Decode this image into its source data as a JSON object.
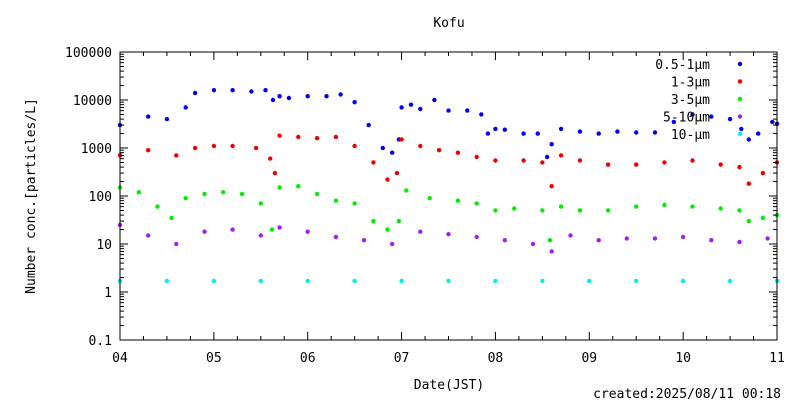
{
  "chart_data": {
    "type": "scatter",
    "title": "Kofu",
    "xlabel": "Date(JST)",
    "ylabel": "Number conc.[particles/L]",
    "footer": "created:2025/08/11 00:18",
    "y_scale": "log",
    "ylim": [
      0.1,
      100000
    ],
    "y_ticks": [
      "0.1",
      "1",
      "10",
      "100",
      "1000",
      "10000",
      "100000"
    ],
    "y_tick_values": [
      0.1,
      1,
      10,
      100,
      1000,
      10000,
      100000
    ],
    "xlim": [
      4,
      11
    ],
    "x_ticks": [
      "04",
      "05",
      "06",
      "07",
      "08",
      "09",
      "10",
      "11"
    ],
    "x_tick_values": [
      4,
      5,
      6,
      7,
      8,
      9,
      10,
      11
    ],
    "grid": false,
    "legend_position": "top-right",
    "series": [
      {
        "name": "0.5-1μm",
        "color": "#0000ee",
        "x": [
          4.0,
          4.3,
          4.5,
          4.7,
          4.8,
          5.0,
          5.2,
          5.4,
          5.55,
          5.63,
          5.7,
          5.8,
          6.0,
          6.2,
          6.35,
          6.5,
          6.65,
          6.8,
          6.9,
          6.97,
          7.0,
          7.1,
          7.2,
          7.35,
          7.5,
          7.7,
          7.85,
          7.92,
          8.0,
          8.1,
          8.3,
          8.45,
          8.55,
          8.6,
          8.7,
          8.9,
          9.1,
          9.3,
          9.5,
          9.7,
          9.9,
          10.1,
          10.3,
          10.5,
          10.62,
          10.7,
          10.8,
          10.95,
          11.0
        ],
        "y": [
          3000,
          4500,
          4000,
          7000,
          14000,
          16000,
          16000,
          15000,
          16000,
          10000,
          12000,
          11000,
          12000,
          12000,
          13000,
          9000,
          3000,
          1000,
          800,
          1500,
          7000,
          8000,
          6500,
          10000,
          6000,
          6000,
          5000,
          2000,
          2500,
          2400,
          2000,
          2000,
          650,
          1200,
          2500,
          2200,
          2000,
          2200,
          2100,
          2100,
          3500,
          5000,
          4500,
          4000,
          2500,
          1500,
          2000,
          3500,
          3200
        ]
      },
      {
        "name": "1-3μm",
        "color": "#ee0000",
        "x": [
          4.0,
          4.3,
          4.6,
          4.8,
          5.0,
          5.2,
          5.45,
          5.6,
          5.65,
          5.7,
          5.9,
          6.1,
          6.3,
          6.5,
          6.7,
          6.85,
          6.95,
          7.0,
          7.2,
          7.4,
          7.6,
          7.8,
          8.0,
          8.3,
          8.5,
          8.6,
          8.7,
          8.9,
          9.2,
          9.5,
          9.8,
          10.1,
          10.4,
          10.6,
          10.7,
          10.85,
          11.0
        ],
        "y": [
          700,
          900,
          700,
          1000,
          1100,
          1100,
          1000,
          600,
          300,
          1800,
          1700,
          1600,
          1700,
          1100,
          500,
          220,
          300,
          1500,
          1100,
          900,
          800,
          650,
          550,
          550,
          500,
          160,
          700,
          550,
          450,
          450,
          500,
          550,
          450,
          400,
          180,
          300,
          500
        ]
      },
      {
        "name": "3-5μm",
        "color": "#00ee00",
        "x": [
          4.0,
          4.2,
          4.4,
          4.55,
          4.7,
          4.9,
          5.1,
          5.3,
          5.5,
          5.62,
          5.7,
          5.9,
          6.1,
          6.3,
          6.5,
          6.7,
          6.85,
          6.97,
          7.05,
          7.3,
          7.6,
          7.8,
          8.0,
          8.2,
          8.5,
          8.58,
          8.7,
          8.9,
          9.2,
          9.5,
          9.8,
          10.1,
          10.4,
          10.6,
          10.7,
          10.85,
          11.0
        ],
        "y": [
          150,
          120,
          60,
          35,
          90,
          110,
          120,
          110,
          70,
          20,
          150,
          160,
          110,
          80,
          70,
          30,
          20,
          30,
          130,
          90,
          80,
          70,
          50,
          55,
          50,
          12,
          60,
          50,
          50,
          60,
          65,
          60,
          55,
          50,
          30,
          35,
          40
        ]
      },
      {
        "name": "5-10μm",
        "color": "#a020f0",
        "x": [
          4.0,
          4.3,
          4.6,
          4.9,
          5.2,
          5.5,
          5.7,
          6.0,
          6.3,
          6.6,
          6.9,
          7.2,
          7.5,
          7.8,
          8.1,
          8.4,
          8.6,
          8.8,
          9.1,
          9.4,
          9.7,
          10.0,
          10.3,
          10.6,
          10.9
        ],
        "y": [
          25,
          15,
          10,
          18,
          20,
          15,
          22,
          18,
          14,
          12,
          10,
          18,
          16,
          14,
          12,
          10,
          7,
          15,
          12,
          13,
          13,
          14,
          12,
          11,
          13
        ]
      },
      {
        "name": "10-μm",
        "color": "#00eeee",
        "x": [
          4.0,
          4.5,
          5.0,
          5.5,
          6.0,
          6.5,
          7.0,
          7.5,
          8.0,
          8.5,
          9.0,
          9.5,
          10.0,
          10.5,
          11.0
        ],
        "y": [
          1.7,
          1.7,
          1.7,
          1.7,
          1.7,
          1.7,
          1.7,
          1.7,
          1.7,
          1.7,
          1.7,
          1.7,
          1.7,
          1.7,
          1.7
        ]
      }
    ]
  }
}
